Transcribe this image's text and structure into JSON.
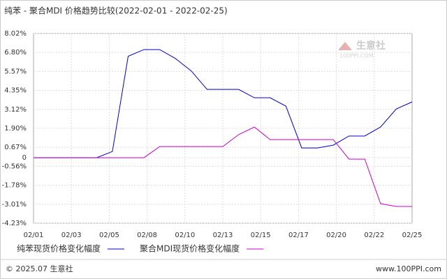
{
  "chart_data": {
    "type": "line",
    "title": "纯苯 - 聚合MDI 价格趋势比较(2022-02-01 - 2022-02-25)",
    "xticks": [
      "02/01",
      "02/03",
      "02/05",
      "02/08",
      "02/10",
      "02/13",
      "02/15",
      "02/17",
      "02/20",
      "02/22",
      "02/25"
    ],
    "series": [
      {
        "name": "纯苯现货价格变化幅度",
        "color": "#0000cc",
        "values": [
          0,
          0,
          0,
          0,
          0,
          0.4,
          6.55,
          6.98,
          6.98,
          6.4,
          5.6,
          4.41,
          4.41,
          4.41,
          3.87,
          3.87,
          3.33,
          0.63,
          0.63,
          0.81,
          1.4,
          1.4,
          1.98,
          3.15,
          3.6
        ]
      },
      {
        "name": "聚合MDI现货价格变化幅度",
        "color": "#cc00cc",
        "values": [
          0,
          0,
          0,
          0,
          0,
          0,
          0,
          0,
          0.72,
          0.72,
          0.72,
          0.72,
          0.72,
          1.49,
          1.98,
          1.17,
          1.17,
          1.17,
          1.17,
          1.17,
          -0.09,
          -0.09,
          -2.97,
          -3.15,
          -3.15
        ]
      }
    ],
    "ylim": [
      -4.23,
      8.02
    ],
    "yticks": [
      {
        "value": 8.02,
        "label": "8.02%"
      },
      {
        "value": 6.8,
        "label": "6.80%"
      },
      {
        "value": 5.57,
        "label": "5.57%"
      },
      {
        "value": 4.35,
        "label": "4.35%"
      },
      {
        "value": 3.12,
        "label": "3.12%"
      },
      {
        "value": 1.9,
        "label": "1.90%"
      },
      {
        "value": 0.67,
        "label": "0.67%"
      },
      0,
      {
        "value": -0.56,
        "label": "-0.56%"
      },
      {
        "value": -1.78,
        "label": "-1.78%"
      },
      {
        "value": -3.01,
        "label": "-3.01%"
      },
      {
        "value": -4.23,
        "label": "-4.23%"
      }
    ],
    "grid": true,
    "watermark": [
      "生意社",
      "100PPI.COM"
    ],
    "footer": {
      "left": "© 2025.07 生意社",
      "right": "www.100PPI.com"
    }
  }
}
